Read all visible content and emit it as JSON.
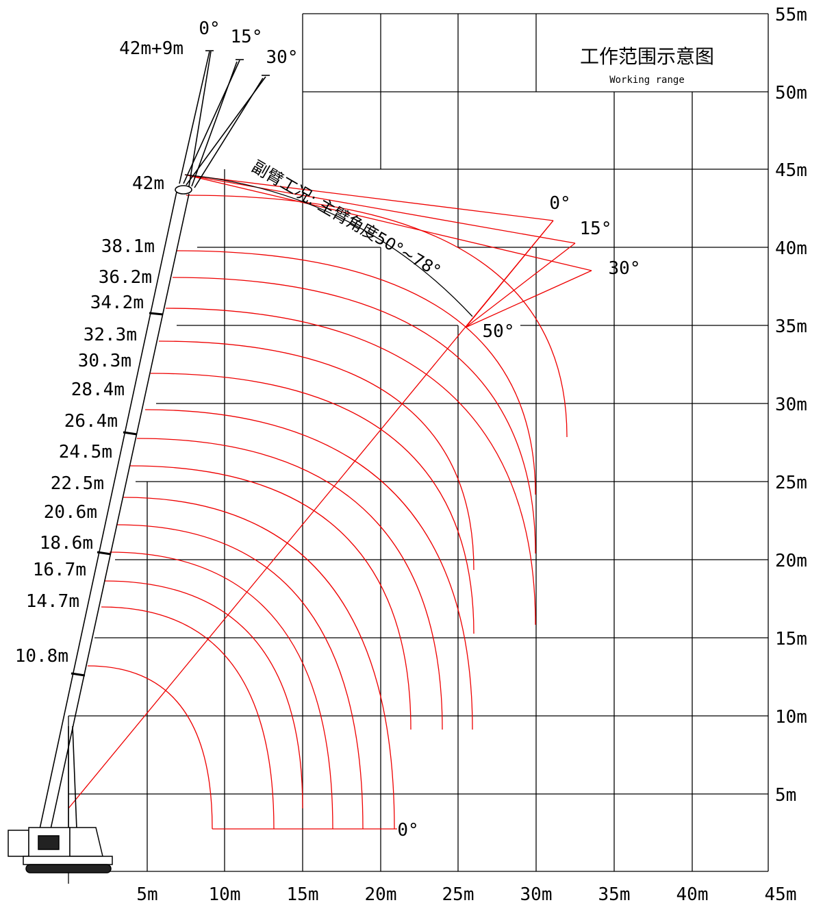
{
  "title": "工作范围示意图",
  "subtitle": "Working range",
  "x_axis_ticks": [
    "5m",
    "10m",
    "15m",
    "20m",
    "25m",
    "30m",
    "35m",
    "40m",
    "45m"
  ],
  "y_axis_ticks": [
    "5m",
    "10m",
    "15m",
    "20m",
    "25m",
    "30m",
    "35m",
    "40m",
    "45m",
    "50m",
    "55m"
  ],
  "boom_labels": [
    "10.8m",
    "14.7m",
    "16.7m",
    "18.6m",
    "20.6m",
    "22.5m",
    "24.5m",
    "26.4m",
    "28.4m",
    "30.3m",
    "32.3m",
    "34.2m",
    "36.2m",
    "38.1m",
    "42m"
  ],
  "jib_label": "42m+9m",
  "jib_angle_labels": [
    "0°",
    "15°",
    "30°"
  ],
  "jib_tip_angle_labels": [
    "0°",
    "15°",
    "30°"
  ],
  "main_angle_label": "50°",
  "ground_angle_label": "0°",
  "jib_condition_label": "副臂工况: 主臂角度50°~78°"
}
